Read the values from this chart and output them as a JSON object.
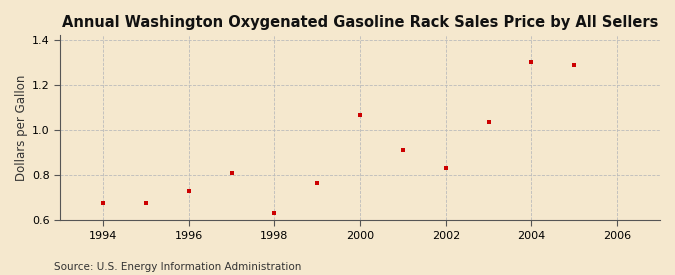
{
  "title": "Annual Washington Oxygenated Gasoline Rack Sales Price by All Sellers",
  "ylabel": "Dollars per Gallon",
  "source": "Source: U.S. Energy Information Administration",
  "background_color": "#f5e8ce",
  "years": [
    1994,
    1995,
    1996,
    1997,
    1998,
    1999,
    2000,
    2001,
    2002,
    2003,
    2004,
    2005
  ],
  "values": [
    0.676,
    0.678,
    0.73,
    0.808,
    0.634,
    0.765,
    1.065,
    0.912,
    0.832,
    1.038,
    1.302,
    1.288
  ],
  "xlim": [
    1993.0,
    2007.0
  ],
  "ylim": [
    0.6,
    1.42
  ],
  "yticks": [
    0.6,
    0.8,
    1.0,
    1.2,
    1.4
  ],
  "xticks": [
    1994,
    1996,
    1998,
    2000,
    2002,
    2004,
    2006
  ],
  "marker_color": "#cc0000",
  "marker": "s",
  "marker_size": 3.5,
  "grid_color": "#bbbbbb",
  "vgrid_xticks": [
    1994,
    1996,
    1998,
    2000,
    2002,
    2004,
    2006
  ],
  "title_fontsize": 10.5,
  "ylabel_fontsize": 8.5,
  "tick_fontsize": 8,
  "source_fontsize": 7.5
}
